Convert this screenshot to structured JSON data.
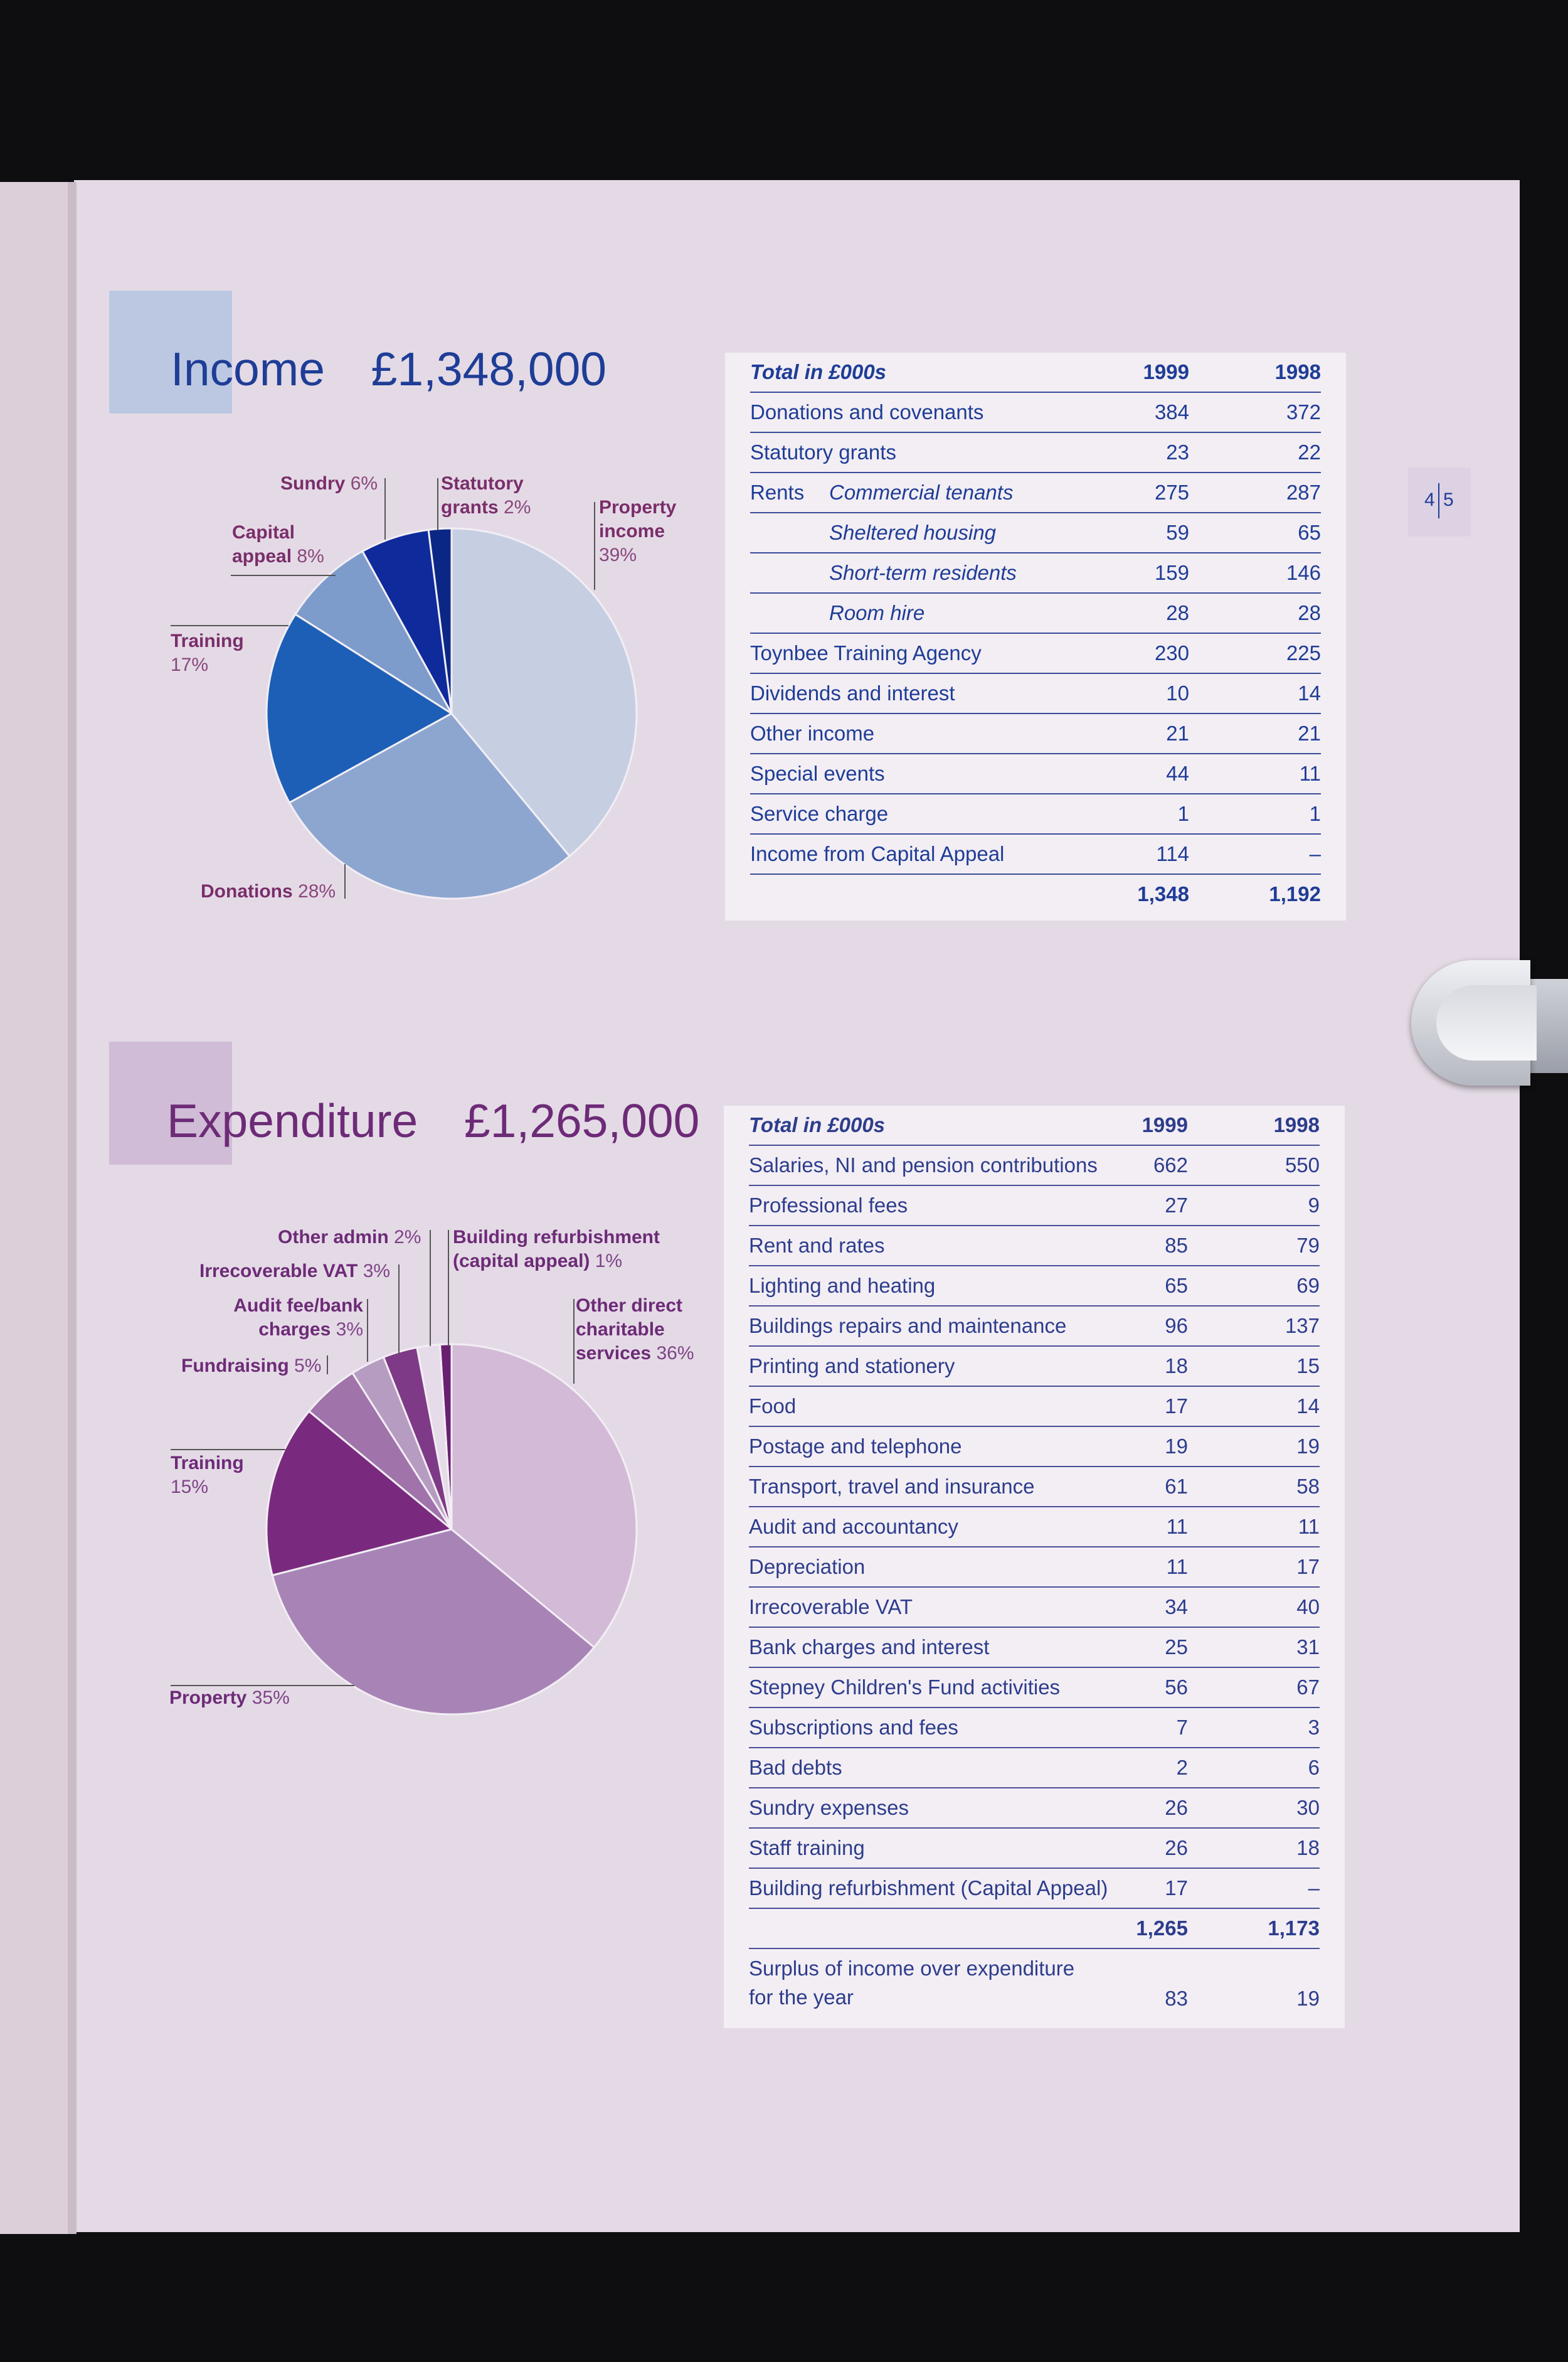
{
  "page_number": {
    "left": "4",
    "right": "5"
  },
  "income": {
    "title_word": "Income",
    "title_amount": "£1,348,000",
    "pie_labels": [
      {
        "name": "Sundry",
        "pct": "6%"
      },
      {
        "name": "Statutory grants",
        "line1": "Statutory",
        "line2": "grants",
        "pct": "2%"
      },
      {
        "name": "Property income",
        "line1": "Property",
        "line2": "income",
        "pct": "39%"
      },
      {
        "name": "Capital appeal",
        "line1": "Capital",
        "line2": "appeal",
        "pct": "8%"
      },
      {
        "name": "Training",
        "pct": "17%"
      },
      {
        "name": "Donations",
        "pct": "28%"
      }
    ],
    "table": {
      "header": {
        "label": "Total in £000s",
        "y1": "1999",
        "y2": "1998"
      },
      "rows": [
        {
          "label": "Donations and covenants",
          "y1": "384",
          "y2": "372"
        },
        {
          "label": "Statutory grants",
          "y1": "23",
          "y2": "22"
        },
        {
          "prefix": "Rents",
          "label": "Commercial tenants",
          "y1": "275",
          "y2": "287"
        },
        {
          "label": "Sheltered housing",
          "y1": "59",
          "y2": "65"
        },
        {
          "label": "Short-term residents",
          "y1": "159",
          "y2": "146"
        },
        {
          "label": "Room hire",
          "y1": "28",
          "y2": "28"
        },
        {
          "label": "Toynbee Training Agency",
          "y1": "230",
          "y2": "225"
        },
        {
          "label": "Dividends and interest",
          "y1": "10",
          "y2": "14"
        },
        {
          "label": "Other income",
          "y1": "21",
          "y2": "21"
        },
        {
          "label": "Special events",
          "y1": "44",
          "y2": "11"
        },
        {
          "label": "Service charge",
          "y1": "1",
          "y2": "1"
        },
        {
          "label": "Income from Capital Appeal",
          "y1": "114",
          "y2": "–"
        }
      ],
      "total": {
        "y1": "1,348",
        "y2": "1,192"
      }
    }
  },
  "expenditure": {
    "title_word": "Expenditure",
    "title_amount": "£1,265,000",
    "pie_labels": [
      {
        "name": "Other admin",
        "pct": "2%"
      },
      {
        "name": "Building refurbishment (capital appeal)",
        "line1": "Building refurbishment",
        "line2": "(capital appeal)",
        "pct": "1%"
      },
      {
        "name": "Irrecoverable VAT",
        "pct": "3%"
      },
      {
        "name": "Audit fee/bank charges",
        "line1": "Audit fee/bank",
        "line2": "charges",
        "pct": "3%"
      },
      {
        "name": "Other direct charitable services",
        "line1": "Other direct",
        "line2": "charitable",
        "line3": "services",
        "pct": "36%"
      },
      {
        "name": "Fundraising",
        "pct": "5%"
      },
      {
        "name": "Training",
        "pct": "15%"
      },
      {
        "name": "Property",
        "pct": "35%"
      }
    ],
    "table": {
      "header": {
        "label": "Total in £000s",
        "y1": "1999",
        "y2": "1998"
      },
      "rows": [
        {
          "label": "Salaries, NI and pension contributions",
          "y1": "662",
          "y2": "550"
        },
        {
          "label": "Professional fees",
          "y1": "27",
          "y2": "9"
        },
        {
          "label": "Rent and rates",
          "y1": "85",
          "y2": "79"
        },
        {
          "label": "Lighting and heating",
          "y1": "65",
          "y2": "69"
        },
        {
          "label": "Buildings repairs and maintenance",
          "y1": "96",
          "y2": "137"
        },
        {
          "label": "Printing and stationery",
          "y1": "18",
          "y2": "15"
        },
        {
          "label": "Food",
          "y1": "17",
          "y2": "14"
        },
        {
          "label": "Postage and telephone",
          "y1": "19",
          "y2": "19"
        },
        {
          "label": "Transport, travel and insurance",
          "y1": "61",
          "y2": "58"
        },
        {
          "label": "Audit and accountancy",
          "y1": "11",
          "y2": "11"
        },
        {
          "label": "Depreciation",
          "y1": "11",
          "y2": "17"
        },
        {
          "label": "Irrecoverable VAT",
          "y1": "34",
          "y2": "40"
        },
        {
          "label": "Bank charges and interest",
          "y1": "25",
          "y2": "31"
        },
        {
          "label": "Stepney Children's Fund activities",
          "y1": "56",
          "y2": "67"
        },
        {
          "label": "Subscriptions and fees",
          "y1": "7",
          "y2": "3"
        },
        {
          "label": "Bad debts",
          "y1": "2",
          "y2": "6"
        },
        {
          "label": "Sundry expenses",
          "y1": "26",
          "y2": "30"
        },
        {
          "label": "Staff training",
          "y1": "26",
          "y2": "18"
        },
        {
          "label": "Building refurbishment (Capital Appeal)",
          "y1": "17",
          "y2": "–"
        }
      ],
      "total": {
        "y1": "1,265",
        "y2": "1,173"
      },
      "surplus": {
        "line1": "Surplus of income over expenditure",
        "line2": "for the year",
        "y1": "83",
        "y2": "19"
      }
    }
  },
  "colors": {
    "income_title": "#1e3d96",
    "expenditure_title": "#6d2b77"
  }
}
